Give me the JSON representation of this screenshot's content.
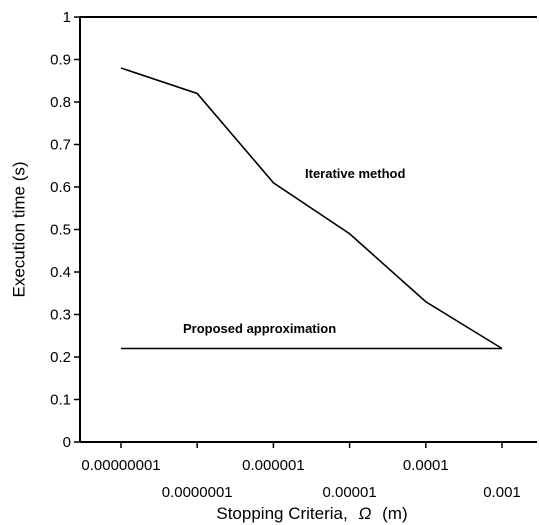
{
  "chart_data": {
    "type": "line",
    "xlabel": "Stopping Criteria,",
    "xlabel_symbol": "Ω",
    "xlabel_unit": "(m)",
    "ylabel": "Execution time (s)",
    "xscale": "log",
    "xlim": [
      1e-08,
      0.001
    ],
    "ylim": [
      0,
      1
    ],
    "grid": false,
    "y_ticks": [
      0,
      0.1,
      0.2,
      0.3,
      0.4,
      0.5,
      0.6,
      0.7,
      0.8,
      0.9,
      1
    ],
    "y_tick_labels": [
      "0",
      "0.1",
      "0.2",
      "0.3",
      "0.4",
      "0.5",
      "0.6",
      "0.7",
      "0.8",
      "0.9",
      "1"
    ],
    "x_ticks": [
      1e-08,
      1e-07,
      1e-06,
      1e-05,
      0.0001,
      0.001
    ],
    "x_tick_labels": [
      "0.00000001",
      "0.0000001",
      "0.000001",
      "0.00001",
      "0.0001",
      "0.001"
    ],
    "series": [
      {
        "name": "Iterative method",
        "x": [
          1e-08,
          1e-07,
          1e-06,
          1e-05,
          0.0001,
          0.001
        ],
        "y": [
          0.88,
          0.82,
          0.61,
          0.49,
          0.33,
          0.22
        ]
      },
      {
        "name": "Proposed approximation",
        "x": [
          1e-08,
          0.001
        ],
        "y": [
          0.22,
          0.22
        ]
      }
    ],
    "annotations": [
      {
        "text": "Iterative method",
        "x": 5e-05,
        "y": 0.63
      },
      {
        "text": "Proposed approximation",
        "x": 1e-07,
        "y": 0.265
      }
    ]
  }
}
